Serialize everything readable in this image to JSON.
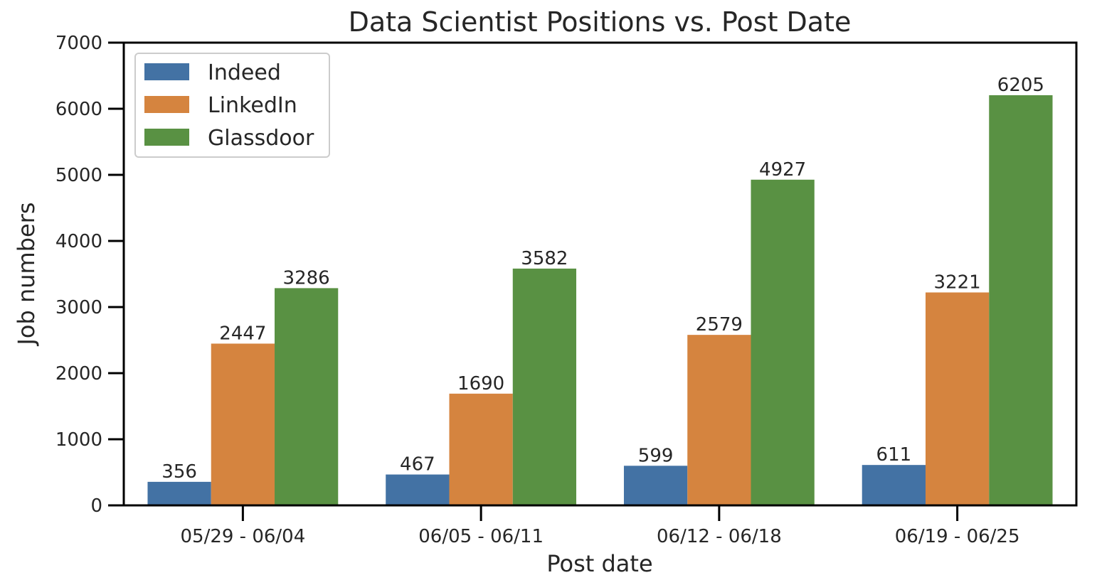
{
  "chart_data": {
    "type": "bar",
    "title": "Data Scientist Positions vs. Post Date",
    "xlabel": "Post date",
    "ylabel": "Job numbers",
    "categories": [
      "05/29 - 06/04",
      "06/05 - 06/11",
      "06/12 - 06/18",
      "06/19 - 06/25"
    ],
    "series": [
      {
        "name": "Indeed",
        "color": "#4372a4",
        "values": [
          356,
          467,
          599,
          611
        ]
      },
      {
        "name": "LinkedIn",
        "color": "#d5843f",
        "values": [
          2447,
          1690,
          2579,
          3221
        ]
      },
      {
        "name": "Glassdoor",
        "color": "#599143",
        "values": [
          3286,
          3582,
          4927,
          6205
        ]
      }
    ],
    "ylim": [
      0,
      7000
    ],
    "yticks": [
      0,
      1000,
      2000,
      3000,
      4000,
      5000,
      6000,
      7000
    ],
    "grid": false,
    "legend_position": "top-left"
  }
}
